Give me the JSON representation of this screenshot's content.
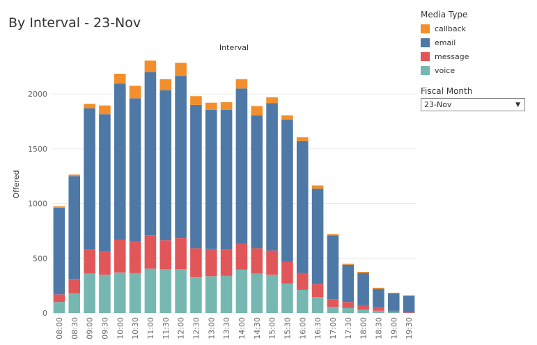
{
  "page_title": "By Interval - 23-Nov",
  "legend": {
    "title": "Media Type",
    "items": [
      {
        "label": "callback",
        "color": "#f28e2b"
      },
      {
        "label": "email",
        "color": "#4e79a7"
      },
      {
        "label": "message",
        "color": "#e15759"
      },
      {
        "label": "voice",
        "color": "#76b7b2"
      }
    ]
  },
  "filter": {
    "title": "Fiscal Month",
    "selected": "23-Nov"
  },
  "chart_data": {
    "type": "bar",
    "stacked": true,
    "title": "Interval",
    "xlabel": "",
    "ylabel": "Offered",
    "ylim": [
      0,
      2350
    ],
    "yticks": [
      0,
      500,
      1000,
      1500,
      2000
    ],
    "grid": true,
    "categories": [
      "08:00",
      "08:30",
      "09:00",
      "09:30",
      "10:00",
      "10:30",
      "11:00",
      "11:30",
      "12:00",
      "12:30",
      "13:00",
      "13:30",
      "14:00",
      "14:30",
      "15:00",
      "15:30",
      "16:00",
      "16:30",
      "17:00",
      "17:30",
      "18:00",
      "18:30",
      "19:00",
      "19:30"
    ],
    "series": [
      {
        "name": "voice",
        "color": "#76b7b2",
        "values": [
          100,
          180,
          360,
          350,
          370,
          365,
          405,
          400,
          400,
          330,
          335,
          340,
          395,
          360,
          350,
          270,
          210,
          145,
          55,
          45,
          30,
          20,
          10,
          0
        ]
      },
      {
        "name": "message",
        "color": "#e15759",
        "values": [
          70,
          130,
          220,
          210,
          300,
          285,
          305,
          265,
          285,
          260,
          250,
          240,
          240,
          230,
          220,
          200,
          155,
          120,
          70,
          55,
          40,
          30,
          10,
          5
        ]
      },
      {
        "name": "email",
        "color": "#4e79a7",
        "values": [
          790,
          940,
          1290,
          1255,
          1425,
          1310,
          1490,
          1370,
          1480,
          1310,
          1270,
          1275,
          1415,
          1215,
          1345,
          1295,
          1205,
          870,
          585,
          340,
          295,
          170,
          160,
          155
        ]
      },
      {
        "name": "callback",
        "color": "#f28e2b",
        "values": [
          15,
          15,
          40,
          80,
          90,
          115,
          105,
          100,
          120,
          80,
          65,
          70,
          85,
          85,
          55,
          40,
          35,
          30,
          10,
          10,
          10,
          10,
          5,
          0
        ]
      }
    ]
  }
}
